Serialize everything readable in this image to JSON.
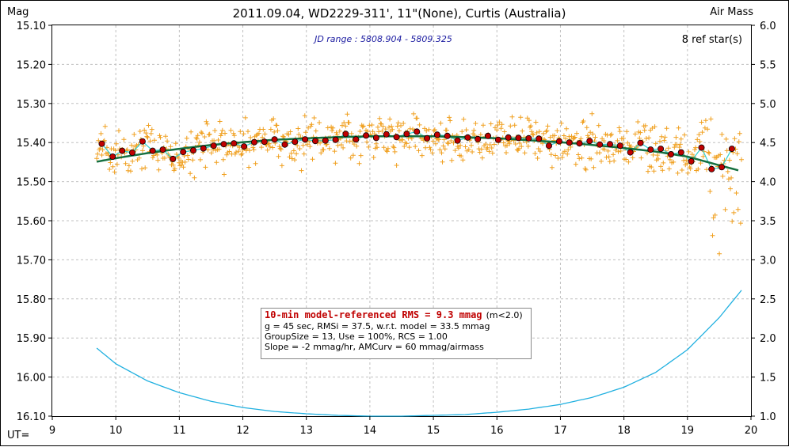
{
  "chart_data": {
    "type": "scatter",
    "title": "2011.09.04, WD2229-311', 11\"(None), Curtis (Australia)",
    "ylabel": "Mag",
    "y2label": "Air Mass",
    "xlabel": "UT=",
    "xlim": [
      9,
      20
    ],
    "ylim": [
      16.1,
      15.1
    ],
    "y2lim": [
      1.0,
      6.0
    ],
    "x_ticks": [
      "9",
      "10",
      "11",
      "12",
      "13",
      "14",
      "15",
      "16",
      "17",
      "18",
      "19",
      "20"
    ],
    "y_ticks": [
      "15.10",
      "15.20",
      "15.30",
      "15.40",
      "15.50",
      "15.60",
      "15.70",
      "15.80",
      "15.90",
      "16.00",
      "16.10"
    ],
    "y2_ticks": [
      "6.0",
      "5.5",
      "5.0",
      "4.5",
      "4.0",
      "3.5",
      "3.0",
      "2.5",
      "2.0",
      "1.5",
      "1.0"
    ],
    "grid": true,
    "jd_range": "JD range : 5808.904 - 5809.325",
    "ref_stars": "8 ref star(s)",
    "info": {
      "line1_red": "10-min model-referenced RMS = 9.3 mmag",
      "line1_tail": "(m<2.0)",
      "line2": "g = 45 sec, RMSi = 37.5, w.r.t. model = 33.5 mmag",
      "line3": "GroupSize = 13, Use = 100%, RCS = 1.00",
      "line4": "Slope = -2 mmag/hr, AMCurv = 60 mmag/airmass"
    },
    "colors": {
      "raw_points": "#f0a020",
      "group_means": "#c00000",
      "model_fit": "#157040",
      "smooth": "#30d0d0",
      "airmass": "#20b0e0",
      "grid": "#c0c0c0"
    },
    "group_means": {
      "x": [
        9.78,
        9.95,
        10.1,
        10.26,
        10.42,
        10.58,
        10.74,
        10.9,
        11.06,
        11.22,
        11.38,
        11.54,
        11.7,
        11.86,
        12.02,
        12.18,
        12.34,
        12.5,
        12.66,
        12.82,
        12.98,
        13.14,
        13.3,
        13.46,
        13.62,
        13.78,
        13.94,
        14.1,
        14.26,
        14.42,
        14.58,
        14.74,
        14.9,
        15.06,
        15.22,
        15.38,
        15.54,
        15.7,
        15.86,
        16.02,
        16.18,
        16.34,
        16.5,
        16.66,
        16.82,
        16.98,
        17.14,
        17.3,
        17.46,
        17.62,
        17.78,
        17.94,
        18.1,
        18.26,
        18.42,
        18.58,
        18.74,
        18.9,
        19.06,
        19.22,
        19.38,
        19.54,
        19.7
      ],
      "y": [
        15.403,
        15.436,
        15.421,
        15.426,
        15.397,
        15.421,
        15.418,
        15.442,
        15.424,
        15.42,
        15.415,
        15.408,
        15.404,
        15.402,
        15.41,
        15.399,
        15.398,
        15.392,
        15.405,
        15.398,
        15.392,
        15.396,
        15.395,
        15.393,
        15.378,
        15.392,
        15.382,
        15.388,
        15.379,
        15.386,
        15.378,
        15.372,
        15.389,
        15.38,
        15.383,
        15.395,
        15.387,
        15.391,
        15.383,
        15.393,
        15.387,
        15.388,
        15.389,
        15.39,
        15.408,
        15.397,
        15.4,
        15.402,
        15.396,
        15.405,
        15.404,
        15.408,
        15.425,
        15.401,
        15.418,
        15.416,
        15.43,
        15.425,
        15.448,
        15.413,
        15.468,
        15.463,
        15.416
      ]
    },
    "model_fit": {
      "x": [
        9.7,
        10,
        10.5,
        11,
        11.5,
        12,
        12.5,
        13,
        13.5,
        14,
        14.5,
        15,
        15.5,
        16,
        16.5,
        17,
        17.5,
        18,
        18.5,
        19,
        19.5,
        19.8
      ],
      "y": [
        15.449,
        15.44,
        15.427,
        15.416,
        15.406,
        15.399,
        15.393,
        15.389,
        15.386,
        15.384,
        15.384,
        15.384,
        15.386,
        15.389,
        15.394,
        15.399,
        15.406,
        15.414,
        15.423,
        15.436,
        15.458,
        15.471
      ]
    },
    "airmass": {
      "x": [
        9.7,
        10,
        10.5,
        11,
        11.5,
        12,
        12.5,
        13,
        13.5,
        14,
        14.5,
        15,
        15.5,
        16,
        16.5,
        17,
        17.5,
        18,
        18.5,
        19,
        19.5,
        19.85
      ],
      "y": [
        1.87,
        1.67,
        1.45,
        1.3,
        1.19,
        1.11,
        1.06,
        1.03,
        1.01,
        1.0,
        1.0,
        1.01,
        1.02,
        1.05,
        1.09,
        1.15,
        1.24,
        1.37,
        1.56,
        1.85,
        2.26,
        2.61
      ]
    },
    "raw_scatter": {
      "x_start": 9.7,
      "x_end": 19.85,
      "count": 760,
      "mag_sigma": 0.0375
    }
  }
}
